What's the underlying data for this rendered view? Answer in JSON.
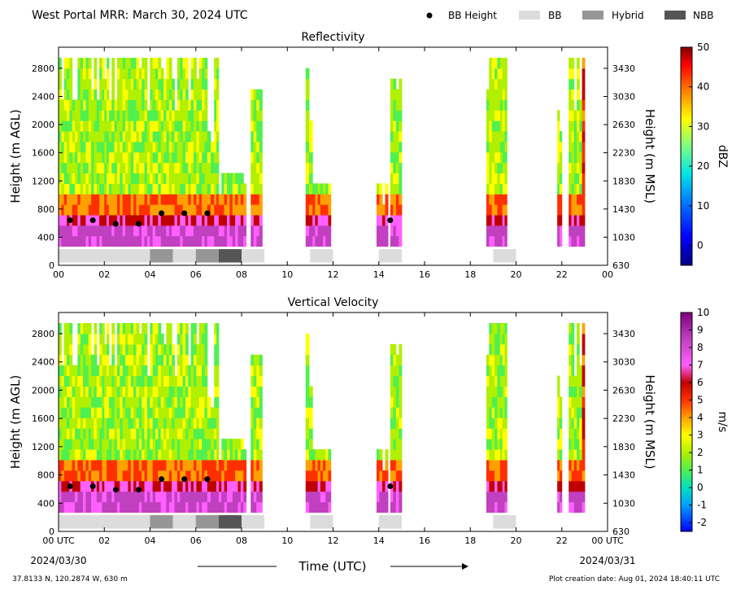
{
  "header": {
    "title": "West Portal MRR:  March 30, 2024 UTC",
    "legend": [
      {
        "label": "BB Height",
        "kind": "dot",
        "color": "#000000"
      },
      {
        "label": "BB",
        "kind": "box",
        "color": "#dcdcdc"
      },
      {
        "label": "Hybrid",
        "kind": "box",
        "color": "#969696"
      },
      {
        "label": "NBB",
        "kind": "box",
        "color": "#555555"
      }
    ]
  },
  "footer": {
    "xlabel": "Time (UTC)",
    "start_date": "2024/03/30",
    "end_date": "2024/03/31",
    "location": "37.8133 N, 120.2874 W, 630 m",
    "creation": "Plot creation date: Aug 01, 2024 18:40:11 UTC"
  },
  "chart_data": [
    {
      "type": "heatmap",
      "title": "Reflectivity",
      "ylabel": "Height (m AGL)",
      "y2label": "Height (m MSL)",
      "xlim": [
        0,
        24
      ],
      "ylim": [
        0,
        3100
      ],
      "x_ticks": [
        "00",
        "02",
        "04",
        "06",
        "08",
        "10",
        "12",
        "14",
        "16",
        "18",
        "20",
        "22",
        "00"
      ],
      "y_ticks": [
        0,
        400,
        800,
        1200,
        1600,
        2000,
        2400,
        2800
      ],
      "y2_ticks": [
        630,
        1030,
        1430,
        1830,
        2230,
        2630,
        3030,
        3430
      ],
      "colorbar": {
        "label": "dBZ",
        "min": -5,
        "max": 50,
        "ticks": [
          0,
          10,
          20,
          30,
          40,
          50
        ]
      },
      "bb_height": [
        {
          "time": 0.5,
          "height": 640
        },
        {
          "time": 1.5,
          "height": 640
        },
        {
          "time": 2.5,
          "height": 590
        },
        {
          "time": 3.5,
          "height": 590
        },
        {
          "time": 4.5,
          "height": 740
        },
        {
          "time": 5.5,
          "height": 740
        },
        {
          "time": 6.5,
          "height": 740
        },
        {
          "time": 14.5,
          "height": 640
        }
      ],
      "bb_type": [
        {
          "start": 0,
          "end": 4,
          "type": "BB"
        },
        {
          "start": 4,
          "end": 5,
          "type": "Hybrid"
        },
        {
          "start": 5,
          "end": 6,
          "type": "BB"
        },
        {
          "start": 6,
          "end": 7,
          "type": "Hybrid"
        },
        {
          "start": 7,
          "end": 8,
          "type": "NBB"
        },
        {
          "start": 8,
          "end": 9,
          "type": "BB"
        },
        {
          "start": 11,
          "end": 12,
          "type": "BB"
        },
        {
          "start": 14,
          "end": 15,
          "type": "BB"
        },
        {
          "start": 19,
          "end": 20,
          "type": "BB"
        }
      ]
    },
    {
      "type": "heatmap",
      "title": "Vertical Velocity",
      "ylabel": "Height (m AGL)",
      "y2label": "Height (m MSL)",
      "xlim": [
        0,
        24
      ],
      "ylim": [
        0,
        3100
      ],
      "x_ticks": [
        "00 UTC",
        "02",
        "04",
        "06",
        "08",
        "10",
        "12",
        "14",
        "16",
        "18",
        "20",
        "22",
        "00 UTC"
      ],
      "y_ticks": [
        0,
        400,
        800,
        1200,
        1600,
        2000,
        2400,
        2800
      ],
      "y2_ticks": [
        630,
        1030,
        1430,
        1830,
        2230,
        2630,
        3030,
        3430
      ],
      "colorbar": {
        "label": "m/s",
        "min": -2.5,
        "max": 10,
        "ticks": [
          -2,
          -1,
          0,
          1,
          2,
          3,
          4,
          5,
          6,
          7,
          8,
          9,
          10
        ]
      },
      "bb_height": [
        {
          "time": 0.5,
          "height": 640
        },
        {
          "time": 1.5,
          "height": 640
        },
        {
          "time": 2.5,
          "height": 590
        },
        {
          "time": 3.5,
          "height": 590
        },
        {
          "time": 4.5,
          "height": 740
        },
        {
          "time": 5.5,
          "height": 740
        },
        {
          "time": 6.5,
          "height": 740
        },
        {
          "time": 14.5,
          "height": 640
        }
      ],
      "bb_type": [
        {
          "start": 0,
          "end": 4,
          "type": "BB"
        },
        {
          "start": 4,
          "end": 5,
          "type": "Hybrid"
        },
        {
          "start": 5,
          "end": 6,
          "type": "BB"
        },
        {
          "start": 6,
          "end": 7,
          "type": "Hybrid"
        },
        {
          "start": 7,
          "end": 8,
          "type": "NBB"
        },
        {
          "start": 8,
          "end": 9,
          "type": "BB"
        },
        {
          "start": 11,
          "end": 12,
          "type": "BB"
        },
        {
          "start": 14,
          "end": 15,
          "type": "BB"
        },
        {
          "start": 19,
          "end": 20,
          "type": "BB"
        }
      ]
    }
  ]
}
